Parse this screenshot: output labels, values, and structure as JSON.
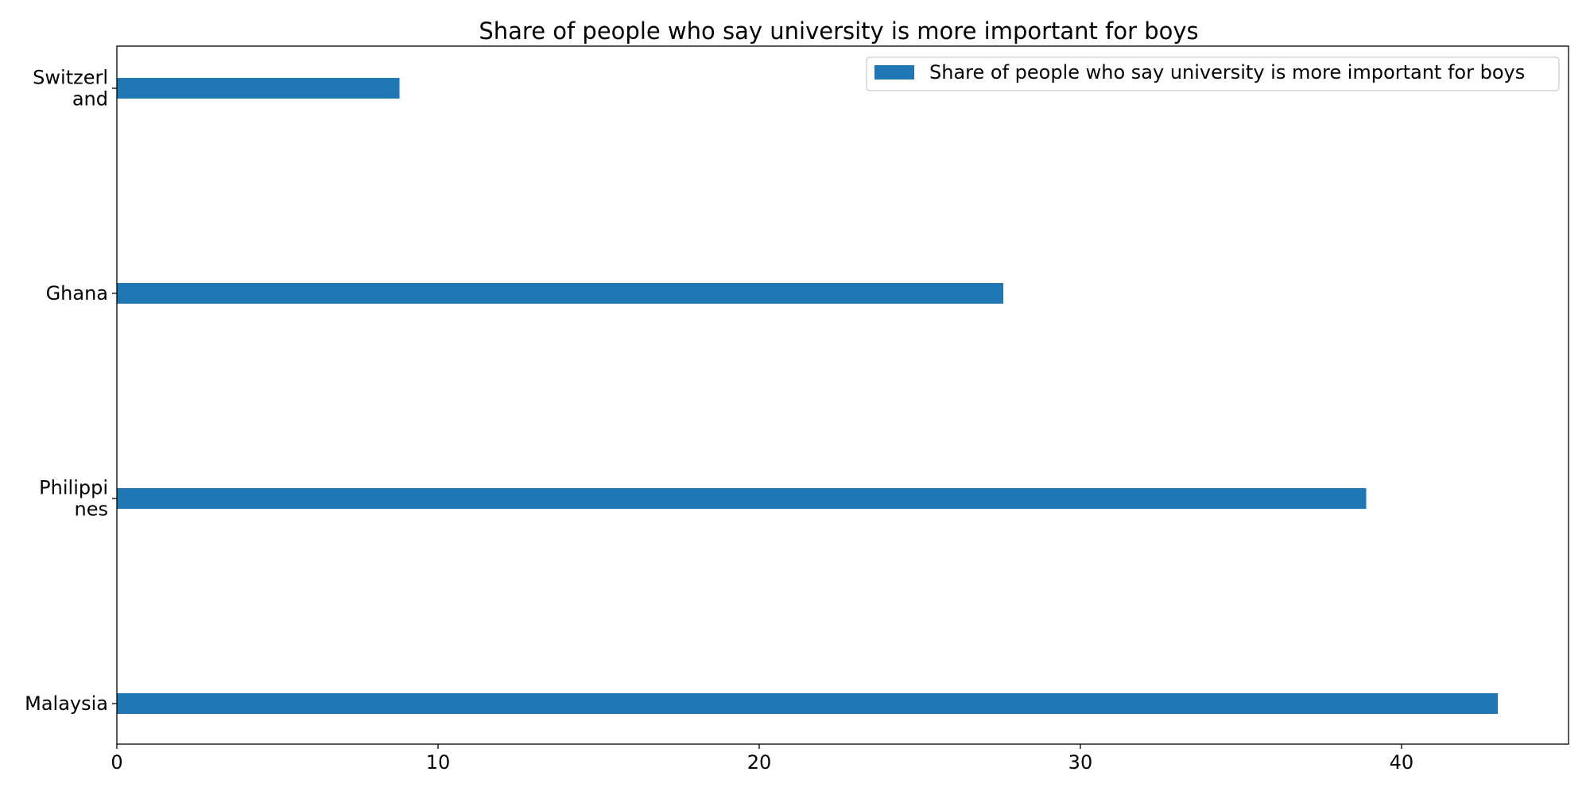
{
  "chart_data": {
    "type": "bar",
    "orientation": "horizontal",
    "title": "Share of people who say university is more important for boys",
    "categories": [
      "Switzerland",
      "Ghana",
      "Philippines",
      "Malaysia"
    ],
    "category_tick_labels": [
      [
        "Switzerl",
        "and"
      ],
      [
        "Ghana"
      ],
      [
        "Philippi",
        "nes"
      ],
      [
        "Malaysia"
      ]
    ],
    "series": [
      {
        "name": "Share of people who say university is more important for boys",
        "values": [
          8.8,
          27.6,
          38.9,
          43.0
        ],
        "color": "#1f77b4"
      }
    ],
    "xlabel": "",
    "ylabel": "",
    "xlim": [
      0,
      45.2
    ],
    "xticks": [
      0,
      10,
      20,
      30,
      40
    ],
    "grid": false,
    "legend_position": "top-right"
  }
}
